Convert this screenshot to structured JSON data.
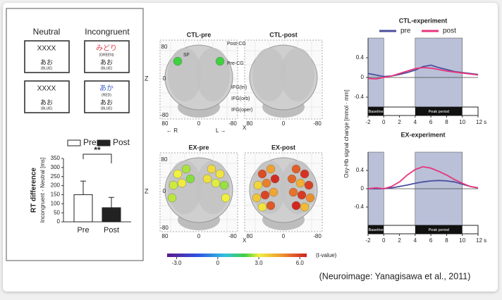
{
  "stroop": {
    "headers": [
      "Neutral",
      "Incongruent"
    ],
    "cards": [
      {
        "top": "XXXX",
        "top_color": "#222222",
        "bottom": "あお",
        "bottom_sub": "(BLUE)"
      },
      {
        "top": "みどり",
        "top_sub": "(GREEN)",
        "top_color": "#e0404f",
        "bottom": "あお",
        "bottom_sub": "(BLUE)"
      },
      {
        "top": "XXXX",
        "top_color": "#222222",
        "bottom": "あお",
        "bottom_sub": "(BLUE)"
      },
      {
        "top": "あか",
        "top_sub": "(RED)",
        "top_color": "#4060c0",
        "bottom": "あお",
        "bottom_sub": "(BLUE)"
      }
    ]
  },
  "chart_data": [
    {
      "type": "bar",
      "ylabel": "RT difference",
      "ylabel_sub": "Incongruent - Neutral [ms]",
      "categories": [
        "Pre",
        "Post"
      ],
      "values": [
        150,
        78
      ],
      "errors": [
        75,
        57
      ],
      "colors": [
        "#ffffff",
        "#222222"
      ],
      "ylim": [
        0,
        350
      ],
      "yticks": [
        0,
        50,
        100,
        150,
        200,
        250,
        300,
        350
      ],
      "annotation": "**"
    },
    {
      "type": "line",
      "title": "CTL-experiment",
      "x": [
        -2,
        -1,
        0,
        1,
        2,
        3,
        4,
        5,
        6,
        7,
        8,
        9,
        10,
        11,
        12
      ],
      "series": [
        {
          "name": "pre",
          "color": "#4b4f9e",
          "values": [
            0.08,
            0.05,
            0.02,
            0.03,
            0.06,
            0.1,
            0.15,
            0.22,
            0.25,
            0.2,
            0.16,
            0.12,
            0.1,
            0.08,
            0.06
          ]
        },
        {
          "name": "post",
          "color": "#e8347b",
          "values": [
            -0.02,
            -0.03,
            0,
            0.03,
            0.08,
            0.13,
            0.18,
            0.2,
            0.19,
            0.16,
            0.13,
            0.11,
            0.09,
            0.07,
            0.05
          ]
        }
      ],
      "xlim": [
        -2,
        12
      ],
      "xticks": [
        -2,
        0,
        2,
        4,
        6,
        8,
        10,
        {
          "value": 12,
          "label": "12 s"
        }
      ],
      "ylim": [
        -0.6,
        0.8
      ],
      "yticks": [
        0.4,
        0,
        -0.4
      ],
      "legend": true,
      "periods": [
        {
          "label": "Baseline",
          "range": [
            -2,
            0
          ]
        },
        {
          "label": "Peak period",
          "range": [
            4,
            10
          ]
        }
      ]
    },
    {
      "type": "line",
      "title": "EX-experiment",
      "ylabel": "Oxy-Hb signal change  [mmol · mm]",
      "x": [
        -2,
        -1,
        0,
        1,
        2,
        3,
        4,
        5,
        6,
        7,
        8,
        9,
        10,
        11,
        12
      ],
      "series": [
        {
          "name": "pre",
          "color": "#4b4f9e",
          "values": [
            0,
            0,
            0,
            0.02,
            0.05,
            0.08,
            0.12,
            0.15,
            0.17,
            0.18,
            0.17,
            0.15,
            0.1,
            0.05,
            0.02
          ]
        },
        {
          "name": "post",
          "color": "#e8347b",
          "values": [
            0,
            0.02,
            0,
            0.05,
            0.15,
            0.3,
            0.42,
            0.48,
            0.45,
            0.38,
            0.3,
            0.2,
            0.12,
            0.05,
            0.02
          ]
        }
      ],
      "xlim": [
        -2,
        12
      ],
      "xticks": [
        -2,
        0,
        2,
        4,
        6,
        8,
        10,
        {
          "value": 12,
          "label": "12 s"
        }
      ],
      "ylim": [
        -0.8,
        0.8
      ],
      "yticks": [
        0.4,
        0,
        -0.4
      ],
      "legend": false,
      "periods": [
        {
          "label": "Baseline",
          "range": [
            -2,
            0
          ]
        },
        {
          "label": "Peak period",
          "range": [
            4,
            10
          ]
        }
      ]
    }
  ],
  "brain_maps": {
    "panels": [
      {
        "title": "CTL-pre",
        "dots": [
          2,
          2
        ]
      },
      {
        "title": "CTL-post",
        "dots": []
      },
      {
        "title": "EX-pre",
        "dots": [
          3.0,
          3.2,
          2.6,
          3.4,
          2.8,
          2.5,
          3.1,
          2.9,
          2.4,
          3.3,
          2.7,
          3.0
        ]
      },
      {
        "title": "EX-post",
        "dots": [
          5.8,
          6.2,
          4.5,
          5.5,
          3.5,
          6.0,
          5.0,
          4.2,
          6.3,
          5.4,
          3.8,
          4.8,
          5.9,
          6.1,
          4.4,
          5.2,
          3.2,
          4.0,
          5.6,
          6.4
        ]
      }
    ],
    "z_label": "Z",
    "x_label": "X",
    "ticks": [
      "80",
      "0",
      "-80"
    ],
    "regions": [
      "Post-CG",
      "Pre-CG",
      "SF",
      "IFG(tri)",
      "IFG(orb)",
      "IFG(oper)"
    ],
    "directions": [
      "← R",
      "L →"
    ],
    "colorbar": {
      "label": "(t-value)",
      "lim": [
        -3.7,
        6.5
      ],
      "ticks": [
        {
          "value": -3,
          "label": "-3.0"
        },
        0,
        {
          "value": 3,
          "label": "3.0"
        },
        {
          "value": 6,
          "label": "6.0"
        }
      ]
    }
  },
  "citation": "(Neuroimage: Yanagisawa et  al., 2011)"
}
